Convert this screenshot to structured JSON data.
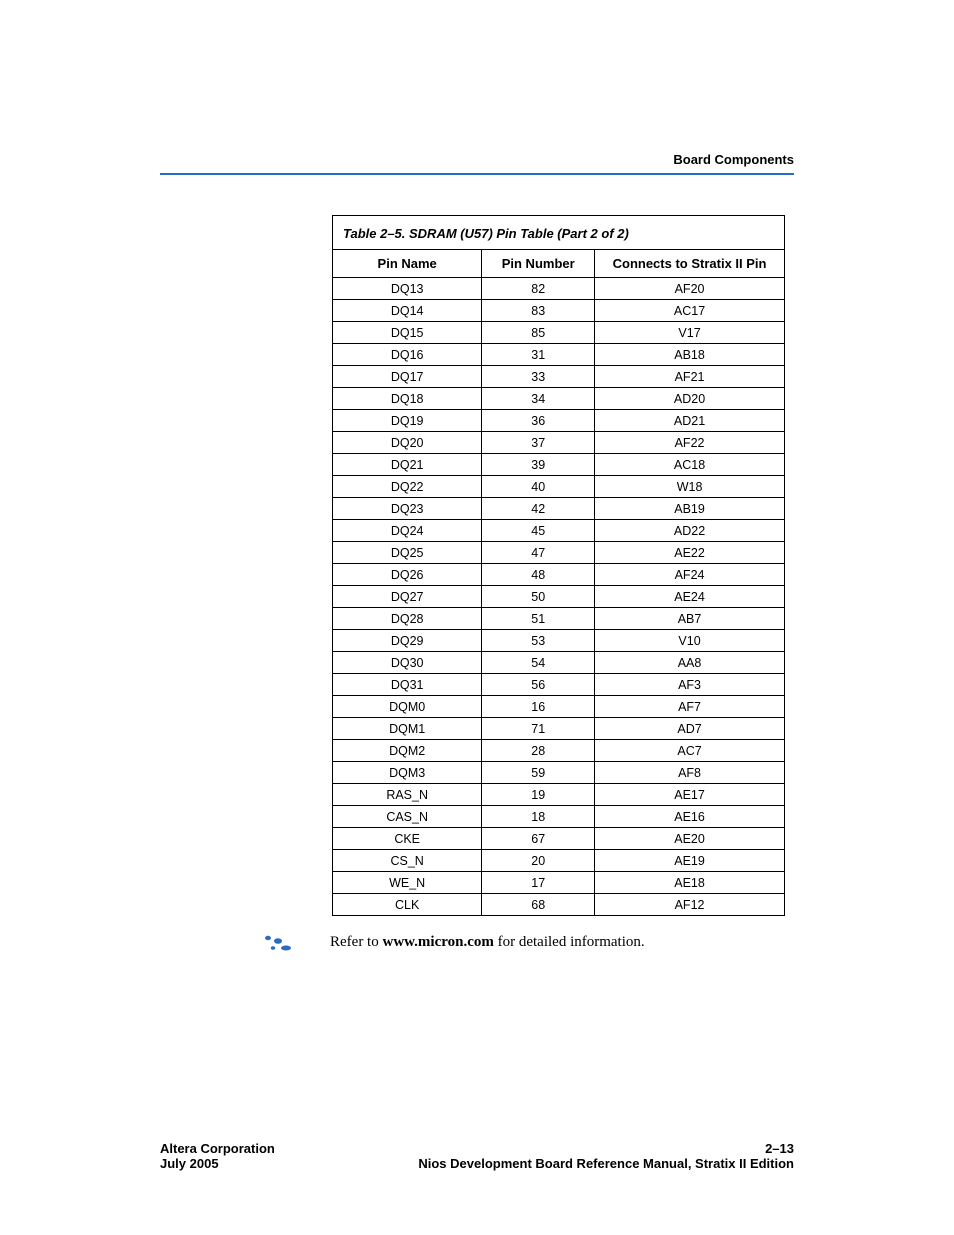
{
  "header": {
    "section": "Board Components"
  },
  "table": {
    "caption": "Table 2–5. SDRAM (U57) Pin Table   (Part 2 of 2)",
    "columns": [
      "Pin Name",
      "Pin Number",
      "Connects to Stratix II Pin"
    ],
    "rows": [
      [
        "DQ13",
        "82",
        "AF20"
      ],
      [
        "DQ14",
        "83",
        "AC17"
      ],
      [
        "DQ15",
        "85",
        "V17"
      ],
      [
        "DQ16",
        "31",
        "AB18"
      ],
      [
        "DQ17",
        "33",
        "AF21"
      ],
      [
        "DQ18",
        "34",
        "AD20"
      ],
      [
        "DQ19",
        "36",
        "AD21"
      ],
      [
        "DQ20",
        "37",
        "AF22"
      ],
      [
        "DQ21",
        "39",
        "AC18"
      ],
      [
        "DQ22",
        "40",
        "W18"
      ],
      [
        "DQ23",
        "42",
        "AB19"
      ],
      [
        "DQ24",
        "45",
        "AD22"
      ],
      [
        "DQ25",
        "47",
        "AE22"
      ],
      [
        "DQ26",
        "48",
        "AF24"
      ],
      [
        "DQ27",
        "50",
        "AE24"
      ],
      [
        "DQ28",
        "51",
        "AB7"
      ],
      [
        "DQ29",
        "53",
        "V10"
      ],
      [
        "DQ30",
        "54",
        "AA8"
      ],
      [
        "DQ31",
        "56",
        "AF3"
      ],
      [
        "DQM0",
        "16",
        "AF7"
      ],
      [
        "DQM1",
        "71",
        "AD7"
      ],
      [
        "DQM2",
        "28",
        "AC7"
      ],
      [
        "DQM3",
        "59",
        "AF8"
      ],
      [
        "RAS_N",
        "19",
        "AE17"
      ],
      [
        "CAS_N",
        "18",
        "AE16"
      ],
      [
        "CKE",
        "67",
        "AE20"
      ],
      [
        "CS_N",
        "20",
        "AE19"
      ],
      [
        "WE_N",
        "17",
        "AE18"
      ],
      [
        "CLK",
        "68",
        "AF12"
      ]
    ]
  },
  "note": {
    "prefix": "Refer to ",
    "link": "www.micron.com",
    "suffix": " for detailed information."
  },
  "footer": {
    "left_top": "Altera Corporation",
    "left_bottom": "July 2005",
    "right_top": "2–13",
    "right_bottom": "Nios Development Board Reference Manual, Stratix II Edition"
  }
}
